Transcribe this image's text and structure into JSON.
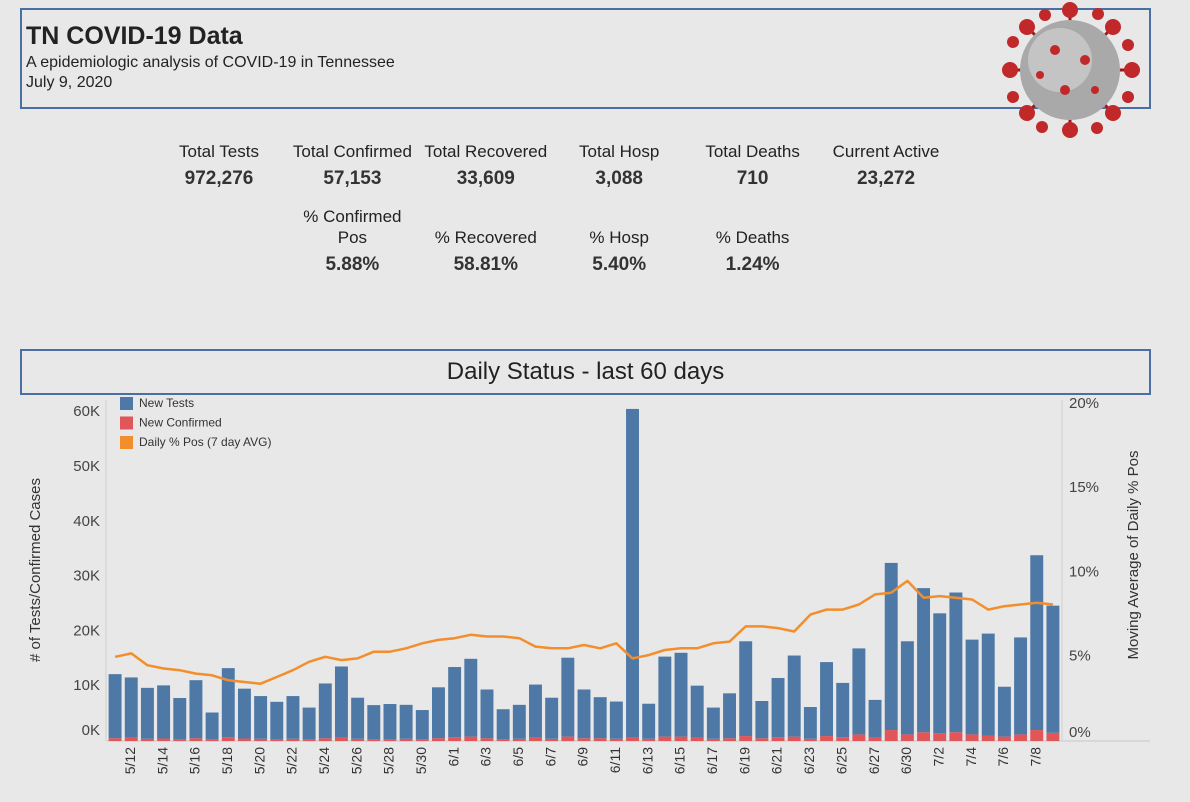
{
  "header": {
    "title": "TN COVID-19 Data",
    "subtitle": "A epidemiologic analysis of COVID-19 in Tennessee",
    "date": "July 9, 2020"
  },
  "stats": {
    "row1": [
      {
        "label": "Total Tests",
        "value": "972,276"
      },
      {
        "label": "Total Confirmed",
        "value": "57,153"
      },
      {
        "label": "Total Recovered",
        "value": "33,609"
      },
      {
        "label": "Total Hosp",
        "value": "3,088"
      },
      {
        "label": "Total Deaths",
        "value": "710"
      },
      {
        "label": "Current Active",
        "value": "23,272"
      }
    ],
    "row2": [
      {
        "label": "% Confirmed Pos",
        "value": "5.88%"
      },
      {
        "label": "% Recovered",
        "value": "58.81%"
      },
      {
        "label": "% Hosp",
        "value": "5.40%"
      },
      {
        "label": "% Deaths",
        "value": "1.24%"
      }
    ]
  },
  "chart_data": {
    "type": "bar",
    "title": "Daily Status - last 60 days",
    "stacked": true,
    "y_label": "# of Tests/Confirmed Cases",
    "y2_label": "Moving Average of Daily % Pos",
    "legend": "top-left",
    "grid": false,
    "categories": [
      null,
      "5/12",
      null,
      "5/14",
      null,
      "5/16",
      null,
      "5/18",
      null,
      "5/20",
      null,
      "5/22",
      null,
      "5/24",
      null,
      "5/26",
      null,
      "5/28",
      null,
      "5/30",
      null,
      "6/1",
      null,
      "6/3",
      null,
      "6/5",
      null,
      "6/7",
      null,
      "6/9",
      null,
      "6/11",
      null,
      "6/13",
      null,
      "6/15",
      null,
      "6/17",
      null,
      "6/19",
      null,
      "6/21",
      null,
      "6/23",
      null,
      "6/25",
      null,
      "6/27",
      null,
      "6/30",
      null,
      "7/2",
      null,
      "7/4",
      null,
      "7/6",
      null,
      "7/8",
      null
    ],
    "ylim": [
      0,
      61500
    ],
    "yticks": [
      {
        "value": 0,
        "label": "0K"
      },
      {
        "value": 10000,
        "label": "10K"
      },
      {
        "value": 20000,
        "label": "20K"
      },
      {
        "value": 30000,
        "label": "30K"
      },
      {
        "value": 40000,
        "label": "40K"
      },
      {
        "value": 50000,
        "label": "50K"
      },
      {
        "value": 60000,
        "label": "60K"
      }
    ],
    "y2lim": [
      0,
      20
    ],
    "y2ticks": [
      {
        "value": 0,
        "label": "0%"
      },
      {
        "value": 5,
        "label": "5%"
      },
      {
        "value": 10,
        "label": "10%"
      },
      {
        "value": 15,
        "label": "15%"
      },
      {
        "value": 20,
        "label": "20%"
      }
    ],
    "series": [
      {
        "name": "New Confirmed",
        "type": "bar",
        "color": "#e15759",
        "values": [
          500,
          600,
          400,
          450,
          350,
          500,
          300,
          700,
          450,
          400,
          350,
          400,
          300,
          500,
          600,
          400,
          350,
          350,
          400,
          350,
          500,
          700,
          800,
          500,
          300,
          400,
          600,
          400,
          800,
          500,
          500,
          400,
          600,
          400,
          800,
          800,
          600,
          400,
          500,
          900,
          500,
          700,
          800,
          400,
          900,
          700,
          1200,
          600,
          2000,
          1200,
          1600,
          1400,
          1600,
          1200,
          1000,
          800,
          1200,
          2000,
          1500
        ]
      },
      {
        "name": "New Tests",
        "type": "bar",
        "color": "#4e79a7",
        "values": [
          11700,
          11000,
          9300,
          9700,
          7500,
          10600,
          4900,
          12600,
          9100,
          7800,
          6800,
          7800,
          5800,
          10000,
          13000,
          7500,
          6200,
          6400,
          6200,
          5300,
          9300,
          12800,
          14200,
          8900,
          5500,
          6200,
          9700,
          7500,
          14400,
          8900,
          7500,
          6800,
          60000,
          6400,
          14600,
          15300,
          9500,
          5700,
          8200,
          17300,
          6800,
          10800,
          14800,
          5800,
          13500,
          9900,
          15700,
          6900,
          30500,
          17000,
          26300,
          21900,
          25500,
          17300,
          18600,
          9100,
          17700,
          31900,
          23200
        ]
      },
      {
        "name": "Daily % Pos (7 day AVG)",
        "type": "line",
        "axis": "y2",
        "color": "#f28e2b",
        "values": [
          5.0,
          5.2,
          4.5,
          4.3,
          4.2,
          4.0,
          3.9,
          3.6,
          3.5,
          3.4,
          3.8,
          4.2,
          4.7,
          5.0,
          4.8,
          4.9,
          5.3,
          5.3,
          5.5,
          5.8,
          6.0,
          6.1,
          6.3,
          6.2,
          6.2,
          6.1,
          5.6,
          5.5,
          5.5,
          5.7,
          5.5,
          5.8,
          4.9,
          5.1,
          5.4,
          5.5,
          5.5,
          5.8,
          5.9,
          6.8,
          6.8,
          6.7,
          6.5,
          7.5,
          7.8,
          7.8,
          8.1,
          8.7,
          8.8,
          9.5,
          8.5,
          8.6,
          8.5,
          8.4,
          7.8,
          8.0,
          8.1,
          8.2,
          8.1
        ]
      }
    ],
    "legend_order": [
      1,
      0,
      2
    ]
  }
}
